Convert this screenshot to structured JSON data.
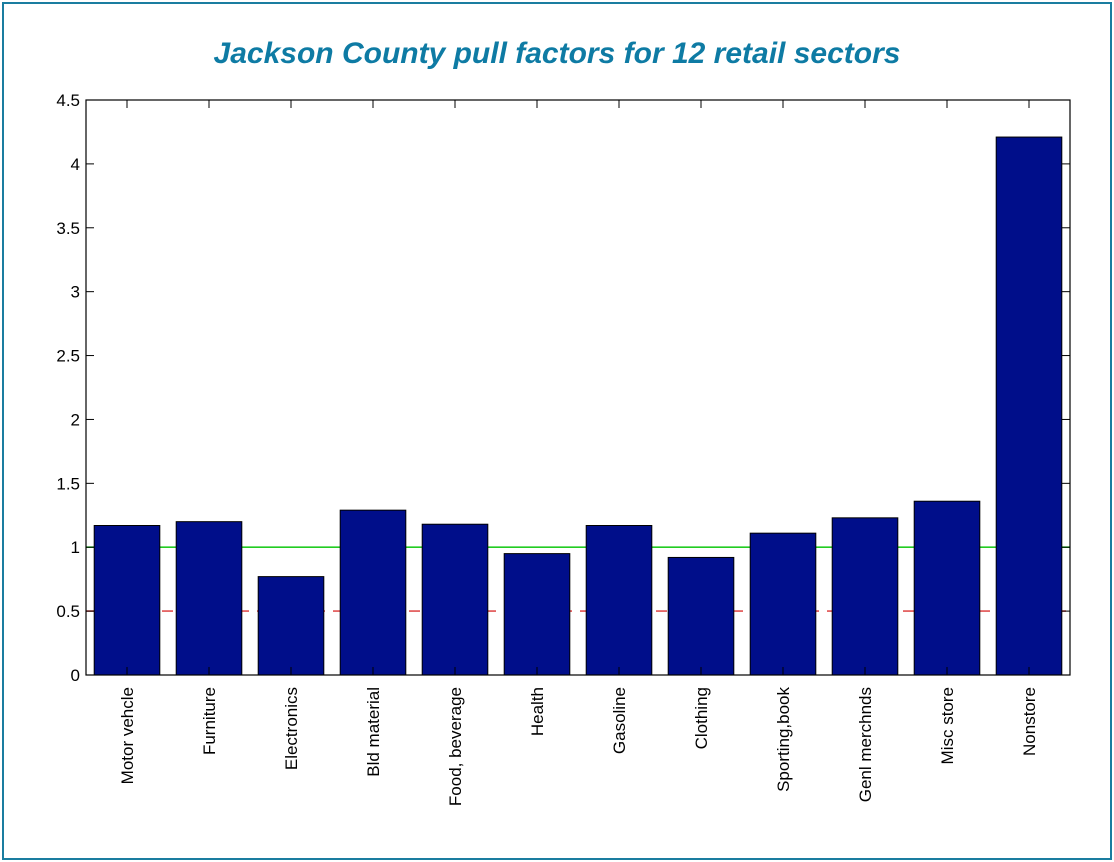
{
  "chart_data": {
    "type": "bar",
    "title": "Jackson County pull factors for 12 retail sectors",
    "xlabel": "",
    "ylabel": "",
    "categories": [
      "Motor vehcle",
      "Furniture",
      "Electronics",
      "Bld material",
      "Food, beverage",
      "Health",
      "Gasoline",
      "Clothing",
      "Sporting,book",
      "Genl merchnds",
      "Misc store",
      "Nonstore"
    ],
    "values": [
      1.17,
      1.2,
      0.77,
      1.29,
      1.18,
      0.95,
      1.17,
      0.92,
      1.11,
      1.23,
      1.36,
      4.21
    ],
    "ylim": [
      0,
      4.5
    ],
    "yticks": [
      "0",
      "0.5",
      "1",
      "1.5",
      "2",
      "2.5",
      "3",
      "3.5",
      "4",
      "4.5"
    ],
    "reference_lines": [
      {
        "value": 1,
        "style": "solid",
        "color": "#22cc22"
      },
      {
        "value": 0.5,
        "style": "dashed",
        "color": "#e05050"
      }
    ],
    "bar_color": "#000e8a",
    "grid": false,
    "legend": "none"
  }
}
